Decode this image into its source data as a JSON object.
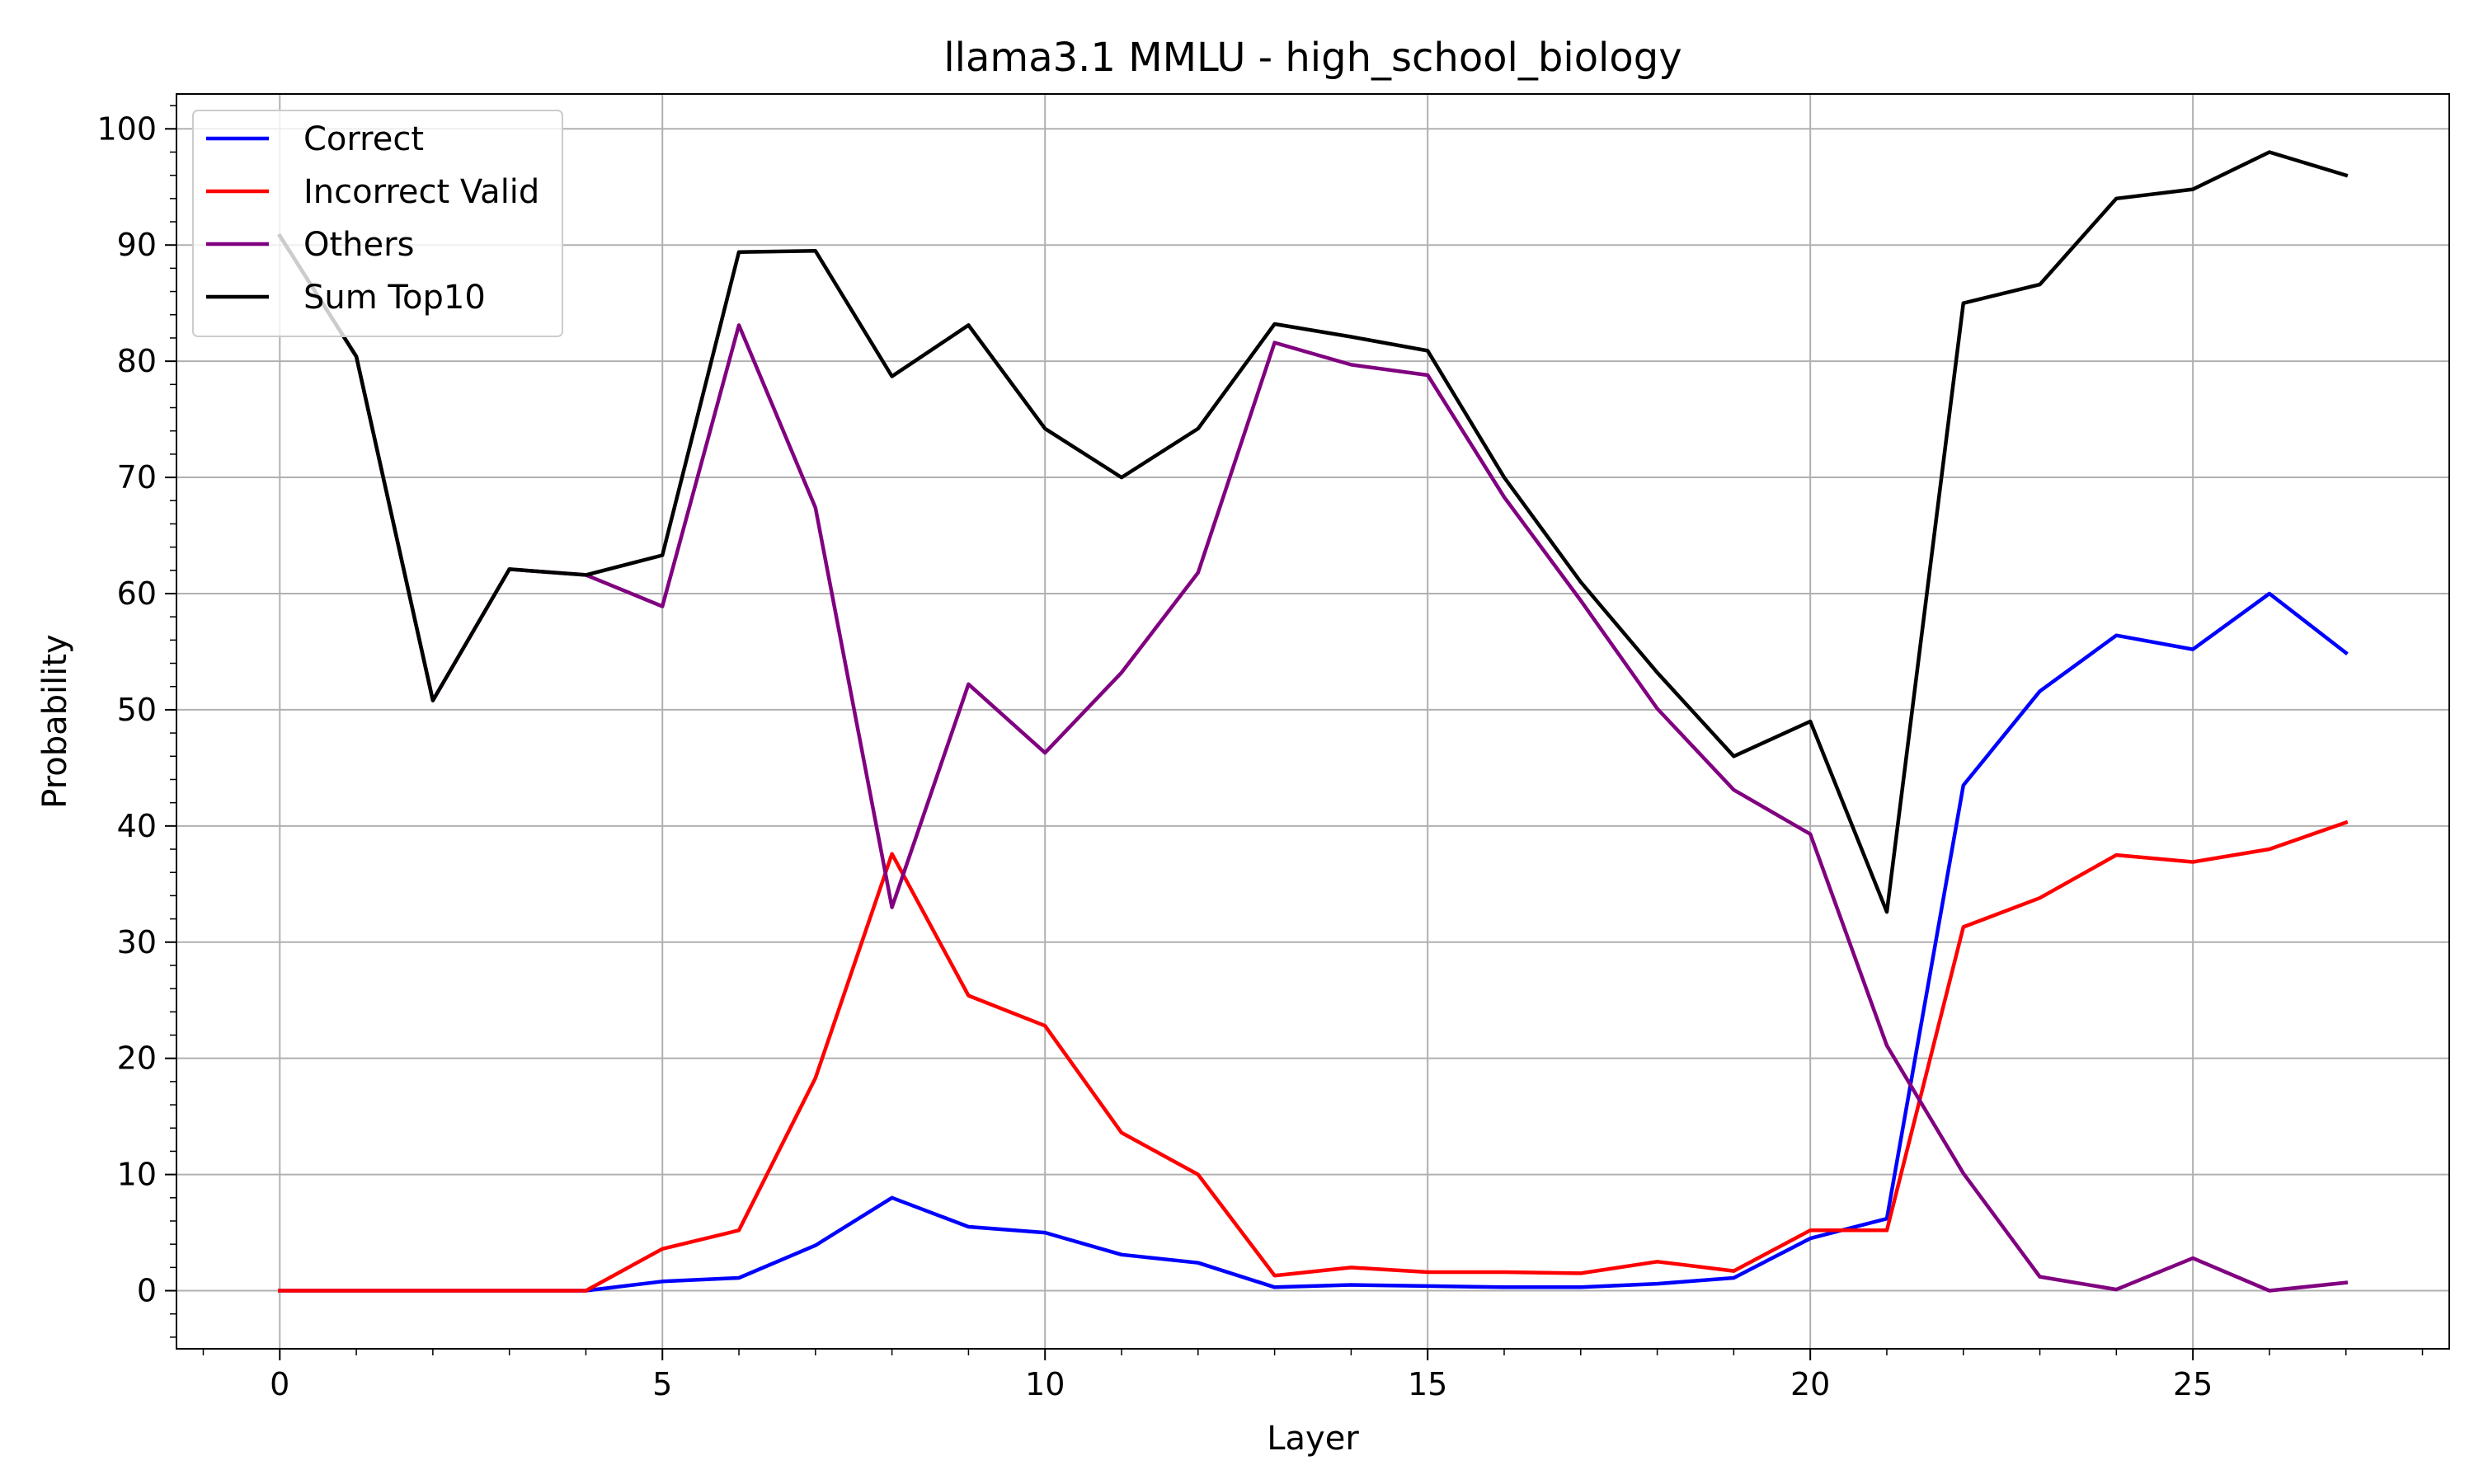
{
  "chart_data": {
    "type": "line",
    "title": "llama3.1 MMLU - high_school_biology",
    "xlabel": "Layer",
    "ylabel": "Probability",
    "xlim": [
      -1.35,
      28.35
    ],
    "ylim": [
      -5,
      103
    ],
    "xticks": [
      0,
      5,
      10,
      15,
      20,
      25
    ],
    "yticks": [
      0,
      10,
      20,
      30,
      40,
      50,
      60,
      70,
      80,
      90,
      100
    ],
    "grid": true,
    "legend_position": "top-left",
    "x": [
      0,
      1,
      2,
      3,
      4,
      5,
      6,
      7,
      8,
      9,
      10,
      11,
      12,
      13,
      14,
      15,
      16,
      17,
      18,
      19,
      20,
      21,
      22,
      23,
      24,
      25,
      26,
      27
    ],
    "series": [
      {
        "name": "Correct",
        "color": "#0000ff",
        "values": [
          0,
          0,
          0,
          0,
          0,
          0.8,
          1.1,
          3.9,
          8.0,
          5.5,
          5.0,
          3.1,
          2.4,
          0.3,
          0.5,
          0.4,
          0.3,
          0.3,
          0.6,
          1.1,
          4.5,
          6.2,
          43.5,
          51.6,
          56.4,
          55.2,
          60.0,
          54.9
        ]
      },
      {
        "name": "Incorrect Valid",
        "color": "#ff0000",
        "values": [
          0,
          0,
          0,
          0,
          0,
          3.6,
          5.2,
          18.3,
          37.6,
          25.4,
          22.8,
          13.6,
          10.0,
          1.3,
          2.0,
          1.6,
          1.6,
          1.5,
          2.5,
          1.7,
          5.2,
          5.2,
          31.3,
          33.8,
          37.5,
          36.9,
          38.0,
          40.3
        ]
      },
      {
        "name": "Others",
        "color": "#800080",
        "values": [
          90.8,
          80.4,
          50.8,
          62.1,
          61.6,
          58.9,
          83.1,
          67.4,
          33.0,
          52.2,
          46.3,
          53.2,
          61.8,
          81.6,
          79.7,
          78.8,
          68.3,
          59.4,
          50.1,
          43.1,
          39.3,
          21.1,
          10.1,
          1.2,
          0.1,
          2.8,
          0.0,
          0.7
        ]
      },
      {
        "name": "Sum Top10",
        "color": "#000000",
        "values": [
          90.8,
          80.4,
          50.8,
          62.1,
          61.6,
          63.3,
          89.4,
          89.5,
          78.7,
          83.1,
          74.2,
          70.0,
          74.2,
          83.2,
          82.1,
          80.9,
          70.0,
          61.0,
          53.2,
          46.0,
          49.0,
          32.6,
          85.0,
          86.6,
          94.0,
          94.8,
          98.0,
          96.0
        ]
      }
    ]
  }
}
